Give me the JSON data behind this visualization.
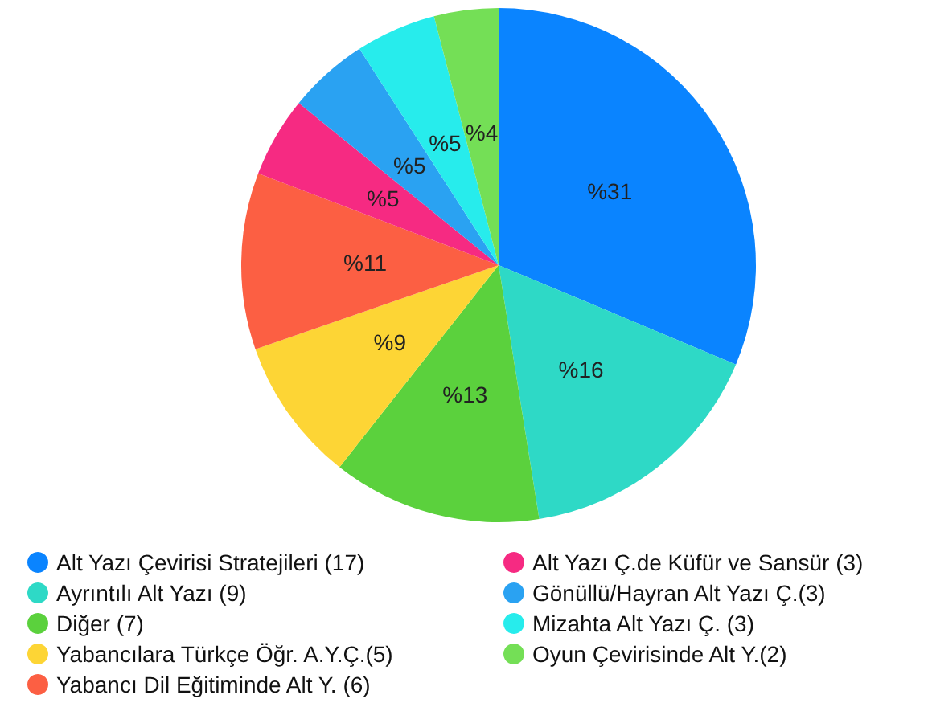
{
  "chart_data": {
    "type": "pie",
    "categories": [
      "Alt Yazı Çevirisi Stratejileri (17)",
      "Ayrıntılı Alt Yazı (9)",
      "Diğer (7)",
      "Yabancılara Türkçe Öğr. A.Y.Ç.(5)",
      "Yabancı Dil Eğitiminde Alt Y. (6)",
      "Alt Yazı Ç.de Küfür ve Sansür (3)",
      "Gönüllü/Hayran Alt Yazı Ç.(3)",
      "Mizahta Alt Yazı Ç. (3)",
      "Oyun Çevirisinde Alt Y.(2)"
    ],
    "values": [
      31,
      16,
      13,
      9,
      11,
      5,
      5,
      5,
      4
    ],
    "value_labels": [
      "%31",
      "%16",
      "%13",
      "%9",
      "%11",
      "%5",
      "%5",
      "%5",
      "%4"
    ],
    "colors": [
      "#0a84ff",
      "#2ed9c6",
      "#5bd13d",
      "#fdd535",
      "#fc5f43",
      "#f62a82",
      "#2aa2f2",
      "#27ecec",
      "#74df56"
    ],
    "legend": "bottom"
  }
}
